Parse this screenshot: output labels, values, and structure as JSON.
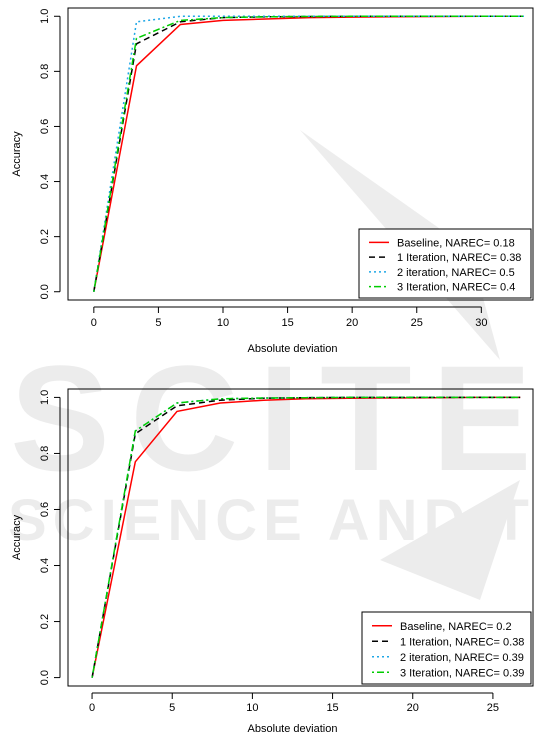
{
  "watermark": {
    "logo_text": "SCITE",
    "tagline": "SCIENCE AND TECH"
  },
  "chart_data": [
    {
      "type": "line",
      "xlabel": "Absolute deviation",
      "ylabel": "Accuracy",
      "xlim": [
        -2,
        34
      ],
      "ylim": [
        -0.03,
        1.03
      ],
      "xticks": [
        0,
        5,
        10,
        15,
        20,
        25,
        30
      ],
      "yticks": [
        0.0,
        0.2,
        0.4,
        0.6,
        0.8,
        1.0
      ],
      "ytick_labels": [
        "0.0",
        "0.2",
        "0.4",
        "0.6",
        "0.8",
        "1.0"
      ],
      "legend_position": "bottom-right",
      "series": [
        {
          "name": "Baseline, NAREC= 0.18",
          "color": "#ff0000",
          "dash": "solid",
          "x": [
            0,
            3.3,
            6.7,
            10,
            13.3,
            16.7,
            20,
            23.3,
            26.7,
            30,
            33.3
          ],
          "y": [
            0.0,
            0.82,
            0.97,
            0.985,
            0.99,
            0.995,
            0.997,
            0.998,
            0.999,
            1.0,
            1.0
          ]
        },
        {
          "name": "1 Iteration, NAREC= 0.38",
          "color": "#000000",
          "dash": "dashed",
          "x": [
            0,
            3.3,
            6.7,
            10,
            13.3,
            16.7,
            20,
            23.3,
            26.7,
            30,
            33.3
          ],
          "y": [
            0.0,
            0.9,
            0.98,
            0.995,
            0.998,
            0.999,
            1.0,
            1.0,
            1.0,
            1.0,
            1.0
          ]
        },
        {
          "name": "2 iteration, NAREC= 0.5",
          "color": "#1ea7e6",
          "dash": "dotted",
          "x": [
            0,
            3.3,
            6.7,
            10,
            13.3,
            16.7,
            20,
            23.3,
            26.7,
            30,
            33.3
          ],
          "y": [
            0.0,
            0.98,
            1.0,
            1.0,
            1.0,
            1.0,
            1.0,
            1.0,
            1.0,
            1.0,
            1.0
          ]
        },
        {
          "name": "3 Iteration, NAREC= 0.4",
          "color": "#00cc00",
          "dash": "dotdash",
          "x": [
            0,
            3.3,
            6.7,
            10,
            13.3,
            16.7,
            20,
            23.3,
            26.7,
            30,
            33.3
          ],
          "y": [
            0.0,
            0.92,
            0.985,
            0.995,
            0.998,
            0.999,
            1.0,
            1.0,
            1.0,
            1.0,
            1.0
          ]
        }
      ]
    },
    {
      "type": "line",
      "xlabel": "Absolute deviation",
      "ylabel": "Accuracy",
      "xlim": [
        -1.5,
        27.5
      ],
      "ylim": [
        -0.03,
        1.03
      ],
      "xticks": [
        0,
        5,
        10,
        15,
        20,
        25
      ],
      "yticks": [
        0.0,
        0.2,
        0.4,
        0.6,
        0.8,
        1.0
      ],
      "ytick_labels": [
        "0.0",
        "0.2",
        "0.4",
        "0.6",
        "0.8",
        "1.0"
      ],
      "legend_position": "bottom-right",
      "series": [
        {
          "name": "Baseline, NAREC= 0.2",
          "color": "#ff0000",
          "dash": "solid",
          "x": [
            0,
            2.7,
            5.3,
            8,
            10.7,
            13.3,
            16,
            18.7,
            21.3,
            24,
            26.7
          ],
          "y": [
            0.0,
            0.77,
            0.95,
            0.98,
            0.99,
            0.995,
            0.997,
            0.998,
            0.999,
            1.0,
            1.0
          ]
        },
        {
          "name": "1 Iteration, NAREC= 0.38",
          "color": "#000000",
          "dash": "dashed",
          "x": [
            0,
            2.7,
            5.3,
            8,
            10.7,
            13.3,
            16,
            18.7,
            21.3,
            24,
            26.7
          ],
          "y": [
            0.0,
            0.87,
            0.97,
            0.99,
            0.997,
            0.999,
            1.0,
            1.0,
            1.0,
            1.0,
            1.0
          ]
        },
        {
          "name": "2 iteration, NAREC= 0.39",
          "color": "#1ea7e6",
          "dash": "dotted",
          "x": [
            0,
            2.7,
            5.3,
            8,
            10.7,
            13.3,
            16,
            18.7,
            21.3,
            24,
            26.7
          ],
          "y": [
            0.0,
            0.88,
            0.98,
            0.995,
            0.998,
            0.999,
            1.0,
            1.0,
            1.0,
            1.0,
            1.0
          ]
        },
        {
          "name": "3 Iteration, NAREC= 0.39",
          "color": "#00cc00",
          "dash": "dotdash",
          "x": [
            0,
            2.7,
            5.3,
            8,
            10.7,
            13.3,
            16,
            18.7,
            21.3,
            24,
            26.7
          ],
          "y": [
            0.0,
            0.88,
            0.98,
            0.995,
            0.998,
            0.999,
            1.0,
            1.0,
            1.0,
            1.0,
            1.0
          ]
        }
      ]
    }
  ]
}
